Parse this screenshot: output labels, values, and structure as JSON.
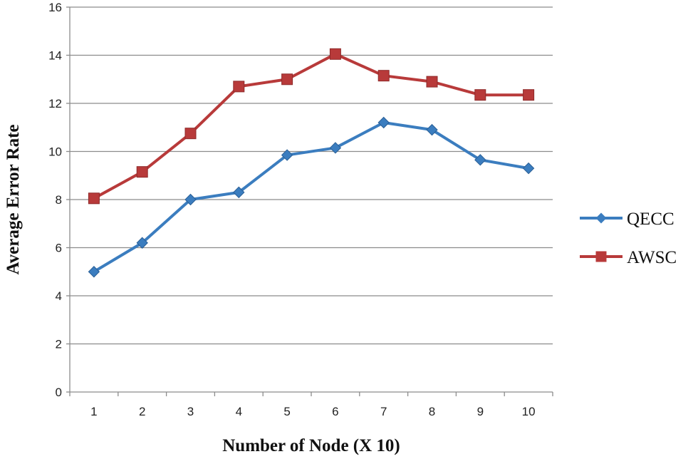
{
  "chart_data": {
    "type": "line",
    "title": "",
    "xlabel": "Number of Node (X 10)",
    "ylabel": "Average Error Rate",
    "x": [
      1,
      2,
      3,
      4,
      5,
      6,
      7,
      8,
      9,
      10
    ],
    "ylim": [
      0,
      16
    ],
    "yticks": [
      0,
      2,
      4,
      6,
      8,
      10,
      12,
      14,
      16
    ],
    "grid": "horizontal",
    "legend_position": "right",
    "series": [
      {
        "name": "QECC",
        "color": "#3b7dbf",
        "marker": "diamond",
        "values": [
          5.0,
          6.2,
          8.0,
          8.3,
          9.85,
          10.15,
          11.2,
          10.9,
          9.65,
          9.3
        ]
      },
      {
        "name": "AWSC",
        "color": "#b83a3a",
        "marker": "square",
        "values": [
          8.05,
          9.15,
          10.75,
          12.7,
          13.0,
          14.05,
          13.15,
          12.9,
          12.35,
          12.35
        ]
      }
    ]
  }
}
